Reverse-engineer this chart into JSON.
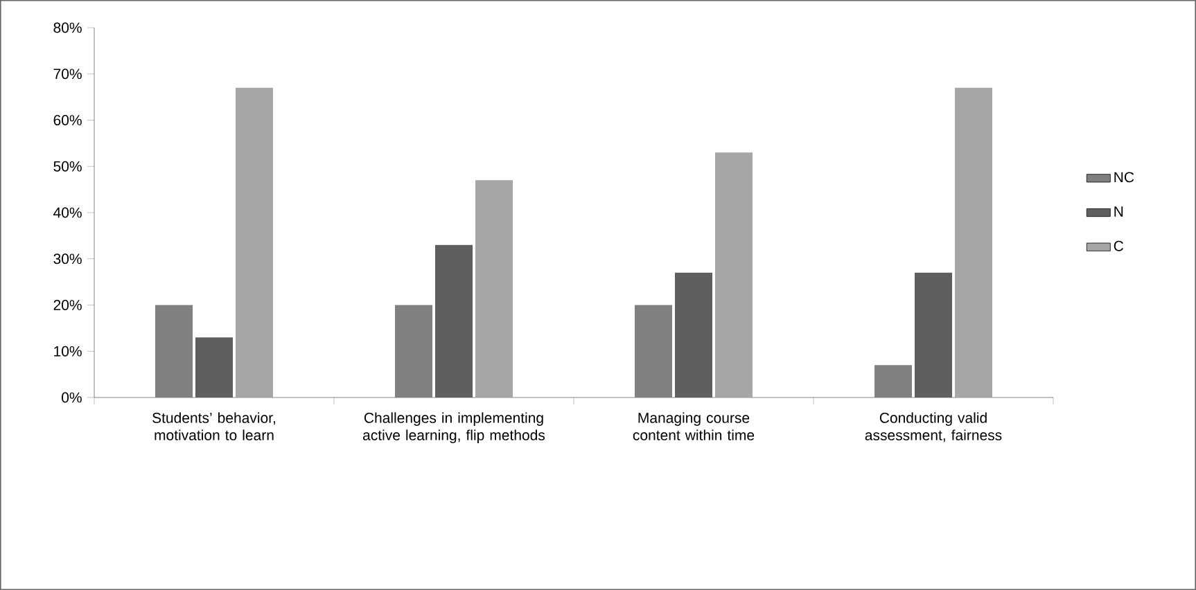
{
  "chart_data": {
    "type": "bar",
    "categories": [
      "Students’ behavior, motivation to learn",
      "Challenges in implementing active learning, flip methods",
      "Managing course content within time",
      "Conducting valid assessment, fairness"
    ],
    "series": [
      {
        "name": "NC",
        "color": "#808080",
        "values": [
          20,
          20,
          20,
          7
        ]
      },
      {
        "name": "N",
        "color": "#5f5f5f",
        "values": [
          13,
          33,
          27,
          27
        ]
      },
      {
        "name": "C",
        "color": "#a6a6a6",
        "values": [
          67,
          47,
          53,
          67
        ]
      }
    ],
    "ylim": [
      0,
      80
    ],
    "yticks": [
      {
        "value": 0,
        "label": "0%"
      },
      {
        "value": 10,
        "label": "10%"
      },
      {
        "value": 20,
        "label": "20%"
      },
      {
        "value": 30,
        "label": "30%"
      },
      {
        "value": 40,
        "label": "40%"
      },
      {
        "value": 50,
        "label": "50%"
      },
      {
        "value": 60,
        "label": "60%"
      },
      {
        "value": 70,
        "label": "70%"
      },
      {
        "value": 80,
        "label": "80%"
      }
    ],
    "grid": false,
    "legend": "right"
  }
}
